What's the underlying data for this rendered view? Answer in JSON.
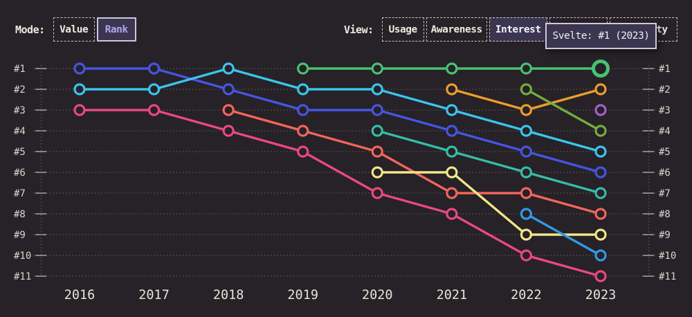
{
  "header": {
    "mode_toggle": {
      "label": "Mode:",
      "options": [
        {
          "label": "Value",
          "selected": false
        },
        {
          "label": "Rank",
          "selected": true
        }
      ]
    },
    "view_toggle": {
      "label": "View:",
      "options": [
        {
          "label": "Usage",
          "selected": false
        },
        {
          "label": "Awareness",
          "selected": false
        },
        {
          "label": "Interest",
          "selected": true
        },
        {
          "label": "",
          "selected": false,
          "hidden_by_tooltip": true
        },
        {
          "label": "ty",
          "selected": false,
          "partially_hidden_by_tooltip": true
        }
      ]
    }
  },
  "tooltip": {
    "text": "Svelte: #1 (2023)"
  },
  "colors": {
    "background": "#262227",
    "grid_dotted": "#5f5a53",
    "tick": "#a59e92",
    "rank_label": "#dcd6cb",
    "year_label": "#e8e2d6",
    "selected_bg": "#3b3650",
    "selected_text": "#b5a6ee",
    "tooltip_border": "#cfc8dd"
  },
  "chart_data": {
    "type": "line",
    "variant": "bump-rank",
    "x_labels": [
      "2016",
      "2017",
      "2018",
      "2019",
      "2020",
      "2021",
      "2022",
      "2023"
    ],
    "y_tick_labels": [
      "#1",
      "#2",
      "#3",
      "#4",
      "#5",
      "#6",
      "#7",
      "#8",
      "#9",
      "#10",
      "#11"
    ],
    "y_axis": "rank (#1 best, top)",
    "y_range": [
      1,
      11
    ],
    "grid": "dotted horizontal gridline per rank, dotted vertical rails left and right",
    "legend": "none (series identified by color; hovered series tooltip shows Svelte)",
    "series": [
      {
        "name": "series-pink",
        "color": "#e9497e",
        "ranks": [
          3,
          3,
          4,
          5,
          7,
          8,
          10,
          11
        ]
      },
      {
        "name": "series-salmon",
        "color": "#f2655c",
        "ranks": [
          null,
          null,
          3,
          4,
          5,
          7,
          7,
          8
        ]
      },
      {
        "name": "series-blue",
        "color": "#4655e0",
        "ranks": [
          1,
          1,
          2,
          3,
          3,
          4,
          5,
          6
        ]
      },
      {
        "name": "series-cyan",
        "color": "#3cc4ec",
        "ranks": [
          2,
          2,
          1,
          2,
          2,
          3,
          4,
          5
        ]
      },
      {
        "name": "series-teal",
        "color": "#35bda6",
        "ranks": [
          null,
          null,
          null,
          null,
          4,
          5,
          6,
          7
        ]
      },
      {
        "name": "series-yellow",
        "color": "#f2e689",
        "ranks": [
          null,
          null,
          null,
          null,
          6,
          6,
          9,
          9
        ]
      },
      {
        "name": "series-amber",
        "color": "#ee9d2b",
        "ranks": [
          null,
          null,
          null,
          null,
          null,
          2,
          3,
          2
        ]
      },
      {
        "name": "series-olive",
        "color": "#72ad3e",
        "ranks": [
          null,
          null,
          null,
          null,
          null,
          null,
          2,
          4
        ]
      },
      {
        "name": "series-azure",
        "color": "#3399e6",
        "ranks": [
          null,
          null,
          null,
          null,
          null,
          null,
          8,
          10
        ]
      },
      {
        "name": "series-purple",
        "color": "#a75ecc",
        "ranks": [
          null,
          null,
          null,
          null,
          null,
          null,
          null,
          3
        ]
      },
      {
        "name": "Svelte",
        "color": "#48c273",
        "ranks": [
          null,
          null,
          null,
          1,
          1,
          1,
          1,
          1
        ],
        "highlight_last": true
      }
    ],
    "highlight": {
      "series": "Svelte",
      "year": "2023",
      "rank": 1,
      "tooltip": "Svelte: #1 (2023)"
    }
  }
}
